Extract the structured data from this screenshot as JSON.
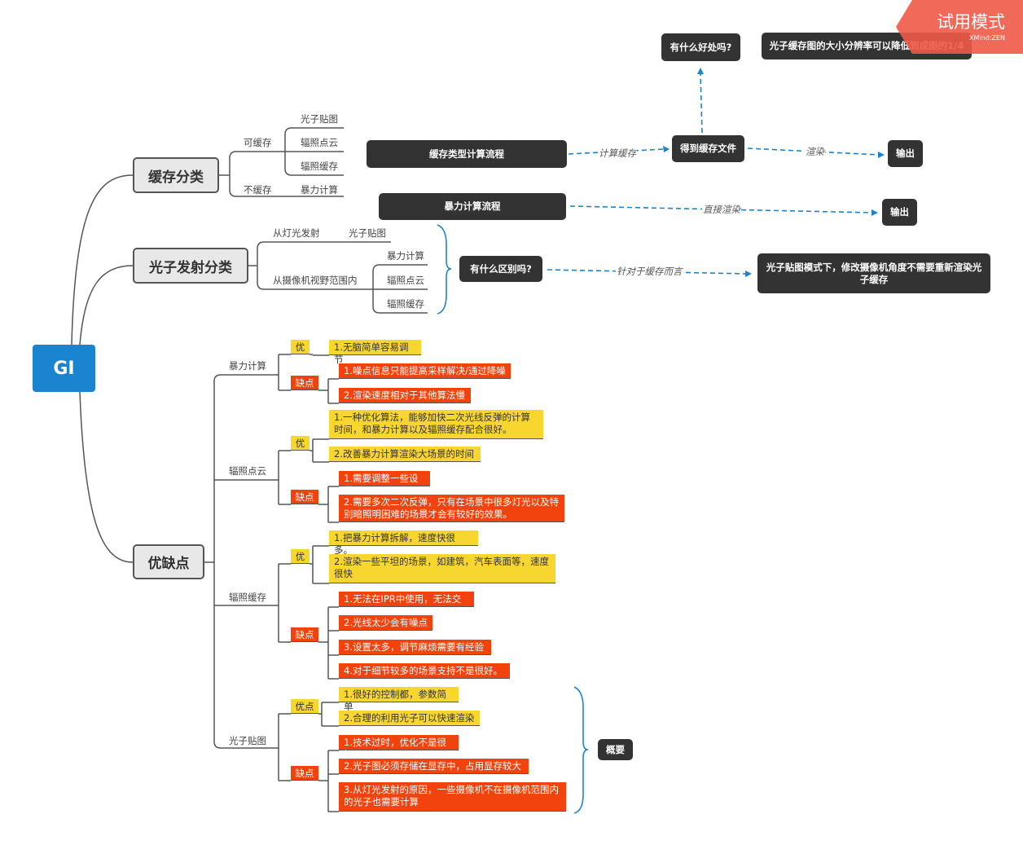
{
  "root": "GI",
  "cache": {
    "title": "缓存分类",
    "cacheable": "可缓存",
    "cacheable_items": [
      "光子贴图",
      "辐照点云",
      "辐照缓存"
    ],
    "no_cache": "不缓存",
    "no_cache_items": [
      "暴力计算"
    ]
  },
  "emission": {
    "title": "光子发射分类",
    "from_light": "从灯光发射",
    "from_light_items": [
      "光子贴图"
    ],
    "from_camera": "从摄像机视野范围内",
    "from_camera_items": [
      "暴力计算",
      "辐照点云",
      "辐照缓存"
    ]
  },
  "proscons": {
    "title": "优缺点",
    "summary": "概要",
    "groups": [
      {
        "name": "暴力计算",
        "pros_label": "优",
        "pros": [
          "1.无脑简单容易调节"
        ],
        "cons_label": "缺点",
        "cons": [
          "1.噪点信息只能提高采样解决/通过降噪",
          "2.渲染速度相对于其他算法慢"
        ]
      },
      {
        "name": "辐照点云",
        "pros_label": "优",
        "pros": [
          "1.一种优化算法，能够加快二次光线反弹的计算时间，和暴力计算以及辐照缓存配合很好。",
          "2.改善暴力计算渲染大场景的时间"
        ],
        "cons_label": "缺点",
        "cons": [
          "1.需要调整一些设置",
          "2.需要多次二次反弹，只有在场景中很多灯光以及特别暗照明困难的场景才会有较好的效果。"
        ]
      },
      {
        "name": "辐照缓存",
        "pros_label": "优",
        "pros": [
          "1.把暴力计算拆解，速度快很多。",
          "2.渲染一些平坦的场景，如建筑，汽车表面等，速度很快"
        ],
        "cons_label": "缺点",
        "cons": [
          "1.无法在IPR中使用，无法交互",
          "2.光线太少会有噪点",
          "3.设置太多，调节麻烦需要有经验",
          "4.对于细节较多的场景支持不是很好。"
        ]
      },
      {
        "name": "光子贴图",
        "pros_label": "优点",
        "pros": [
          "1.很好的控制都，参数简单",
          "2.合理的利用光子可以快速渲染"
        ],
        "cons_label": "缺点",
        "cons": [
          "1.技术过时，优化不是很好",
          "2.光子图必须存储在显存中，占用显存较大",
          "3.从灯光发射的原因，一些摄像机不在摄像机范围内的光子也需要计算"
        ]
      }
    ]
  },
  "flow": {
    "cache_flow": "缓存类型计算流程",
    "compute_cache": "计算缓存",
    "get_cache_file": "得到缓存文件",
    "render": "渲染",
    "output1": "输出",
    "benefit_q": "有什么好处吗?",
    "benefit_a": "光子缓存图的大小分辨率可以降低到成图的1/4",
    "brute_flow": "暴力计算流程",
    "direct_render": "直接渲染",
    "output2": "输出",
    "diff_q": "有什么区别吗?",
    "for_cache": "针对于缓存而言",
    "diff_a": "光子贴图模式下，修改摄像机角度不需要重新渲染光子缓存"
  },
  "watermark": {
    "text": "试用模式",
    "brand": "XMind:ZEN"
  },
  "colors": {
    "root": "#1a84d0",
    "pro": "#f8d630",
    "con": "#f2430e",
    "dark_node": "#333333",
    "arrow": "#1a84d0",
    "watermark": "#f05a47"
  }
}
